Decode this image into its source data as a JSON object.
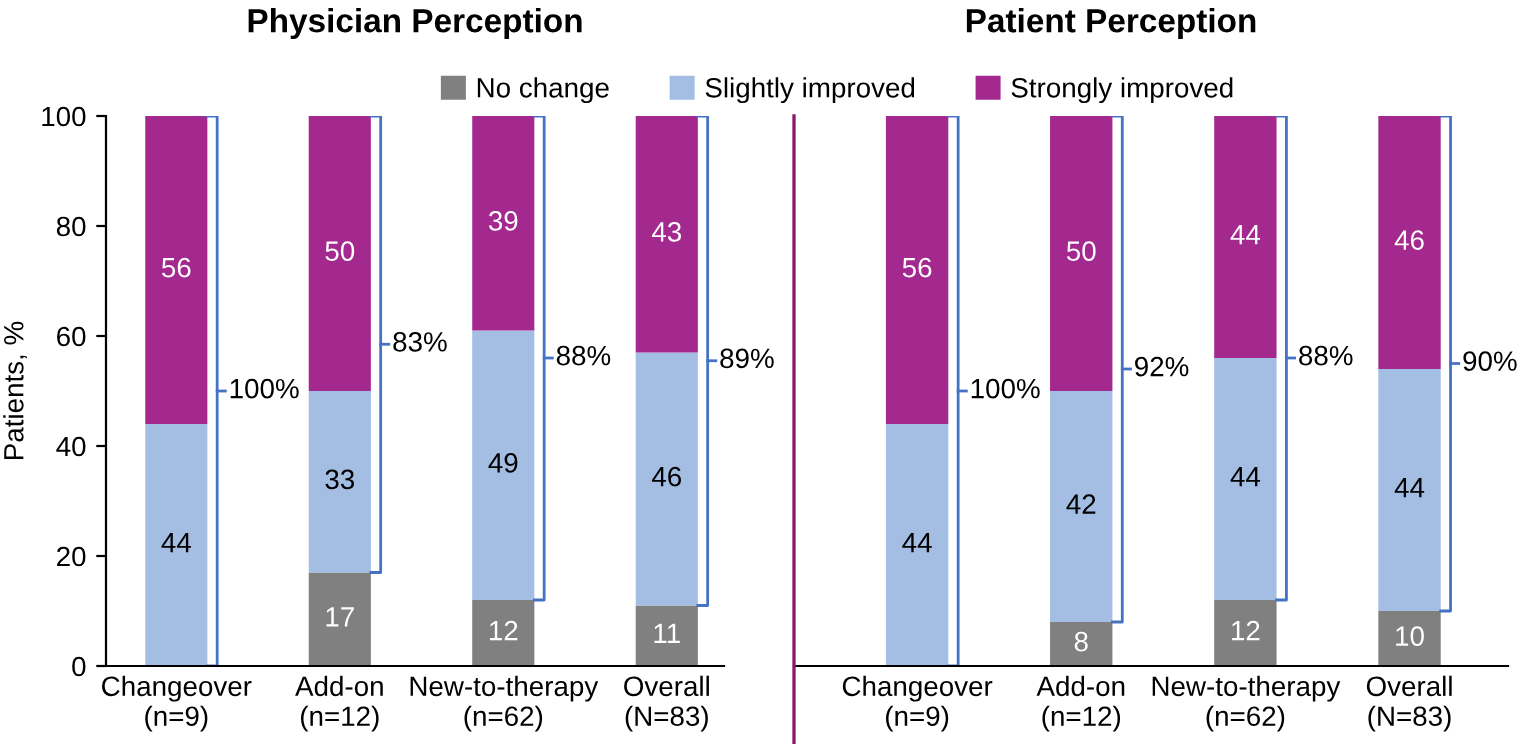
{
  "chart_data": [
    {
      "type": "bar",
      "title": "Physician Perception",
      "ylabel": "Patients, %",
      "categories": [
        "Changeover\n(n=9)",
        "Add-on\n(n=12)",
        "New-to-therapy\n(n=62)",
        "Overall\n(N=83)"
      ],
      "stacked": true,
      "legend": "top",
      "ylim": [
        0,
        100
      ],
      "yticks": [
        0,
        20,
        40,
        60,
        80,
        100
      ],
      "grid": false,
      "series": [
        {
          "name": "No change",
          "color": "#808080",
          "values": [
            0,
            17,
            12,
            11
          ],
          "value_labels": [
            null,
            "17",
            "12",
            "11"
          ]
        },
        {
          "name": "Slightly improved",
          "color": "#a3bde3",
          "values": [
            44,
            33,
            49,
            46
          ],
          "value_labels": [
            "44",
            "33",
            "49",
            "46"
          ]
        },
        {
          "name": "Strongly improved",
          "color": "#a4298f",
          "values": [
            56,
            50,
            39,
            43
          ],
          "value_labels": [
            "56",
            "50",
            "39",
            "43"
          ]
        }
      ],
      "annotations": [
        "100%",
        "83%",
        "88%",
        "89%"
      ]
    },
    {
      "type": "bar",
      "title": "Patient Perception",
      "categories": [
        "Changeover\n(n=9)",
        "Add-on\n(n=12)",
        "New-to-therapy\n(n=62)",
        "Overall\n(N=83)"
      ],
      "stacked": true,
      "ylim": [
        0,
        100
      ],
      "tick_labels": "x",
      "grid": false,
      "series": [
        {
          "color": "#808080",
          "values": [
            0,
            8,
            12,
            10
          ],
          "value_labels": [
            null,
            "8",
            "12",
            "10"
          ]
        },
        {
          "color": "#a3bde3",
          "values": [
            44,
            42,
            44,
            44
          ],
          "value_labels": [
            "44",
            "42",
            "44",
            "44"
          ]
        },
        {
          "color": "#a4298f",
          "values": [
            56,
            50,
            44,
            46
          ],
          "value_labels": [
            "56",
            "50",
            "44",
            "46"
          ]
        }
      ],
      "annotations": [
        "100%",
        "92%",
        "88%",
        "90%"
      ]
    }
  ]
}
